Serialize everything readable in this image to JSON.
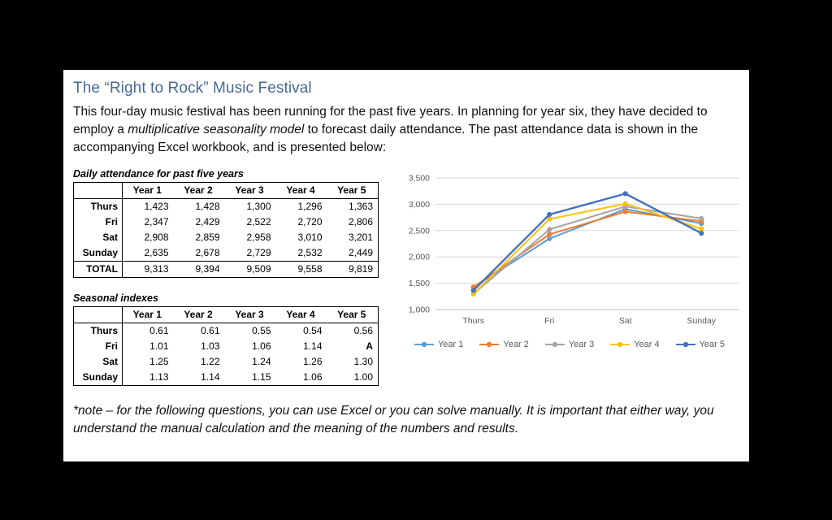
{
  "page": {
    "title": "The “Right to Rock” Music Festival",
    "intro": {
      "before_italic": "This four-day music festival has been running for the past five years.  In planning for year six, they have decided to employ a ",
      "italic": "multiplicative seasonality model",
      "after_italic": " to forecast daily attendance.  The past attendance data is shown in the accompanying Excel workbook, and is presented below:"
    },
    "note_line": "*note – for the following questions, you can use Excel or you can solve manually. It is important that either way, you understand the manual calculation and the meaning of the numbers and results."
  },
  "attendance_table": {
    "caption": "Daily attendance for past five years",
    "columns": [
      "Year 1",
      "Year 2",
      "Year 3",
      "Year 4",
      "Year 5"
    ],
    "rows": [
      {
        "label": "Thurs",
        "values": [
          "1,423",
          "1,428",
          "1,300",
          "1,296",
          "1,363"
        ]
      },
      {
        "label": "Fri",
        "values": [
          "2,347",
          "2,429",
          "2,522",
          "2,720",
          "2,806"
        ]
      },
      {
        "label": "Sat",
        "values": [
          "2,908",
          "2,859",
          "2,958",
          "3,010",
          "3,201"
        ]
      },
      {
        "label": "Sunday",
        "values": [
          "2,635",
          "2,678",
          "2,729",
          "2,532",
          "2,449"
        ]
      },
      {
        "label": "TOTAL",
        "values": [
          "9,313",
          "9,394",
          "9,509",
          "9,558",
          "9,819"
        ]
      }
    ]
  },
  "seasonal_table": {
    "caption": "Seasonal indexes",
    "columns": [
      "Year 1",
      "Year 2",
      "Year 3",
      "Year 4",
      "Year 5"
    ],
    "rows": [
      {
        "label": "Thurs",
        "values": [
          "0.61",
          "0.61",
          "0.55",
          "0.54",
          "0.56"
        ]
      },
      {
        "label": "Fri",
        "values": [
          "1.01",
          "1.03",
          "1.06",
          "1.14",
          "A"
        ]
      },
      {
        "label": "Sat",
        "values": [
          "1.25",
          "1.22",
          "1.24",
          "1.26",
          "1.30"
        ]
      },
      {
        "label": "Sunday",
        "values": [
          "1.13",
          "1.14",
          "1.15",
          "1.06",
          "1.00"
        ]
      }
    ]
  },
  "chart_data": {
    "type": "line",
    "categories": [
      "Thurs",
      "Fri",
      "Sat",
      "Sunday"
    ],
    "series": [
      {
        "name": "Year 1",
        "color": "#5B9BD5",
        "values": [
          1423,
          2347,
          2908,
          2635
        ]
      },
      {
        "name": "Year 2",
        "color": "#ED7D31",
        "values": [
          1428,
          2429,
          2859,
          2678
        ]
      },
      {
        "name": "Year 3",
        "color": "#A5A5A5",
        "values": [
          1300,
          2522,
          2958,
          2729
        ]
      },
      {
        "name": "Year 4",
        "color": "#FFC000",
        "values": [
          1296,
          2720,
          3010,
          2532
        ]
      },
      {
        "name": "Year 5",
        "color": "#4472C4",
        "values": [
          1363,
          2806,
          3201,
          2449
        ]
      }
    ],
    "title": "",
    "xlabel": "",
    "ylabel": "",
    "ylim": [
      1000,
      3500
    ],
    "ytick_step": 500,
    "ytick_labels": [
      "1,000",
      "1,500",
      "2,000",
      "2,500",
      "3,000",
      "3,500"
    ],
    "grid": true,
    "legend_position": "bottom",
    "grid_color": "#D9D9D9",
    "axis_label_color": "#595959"
  }
}
